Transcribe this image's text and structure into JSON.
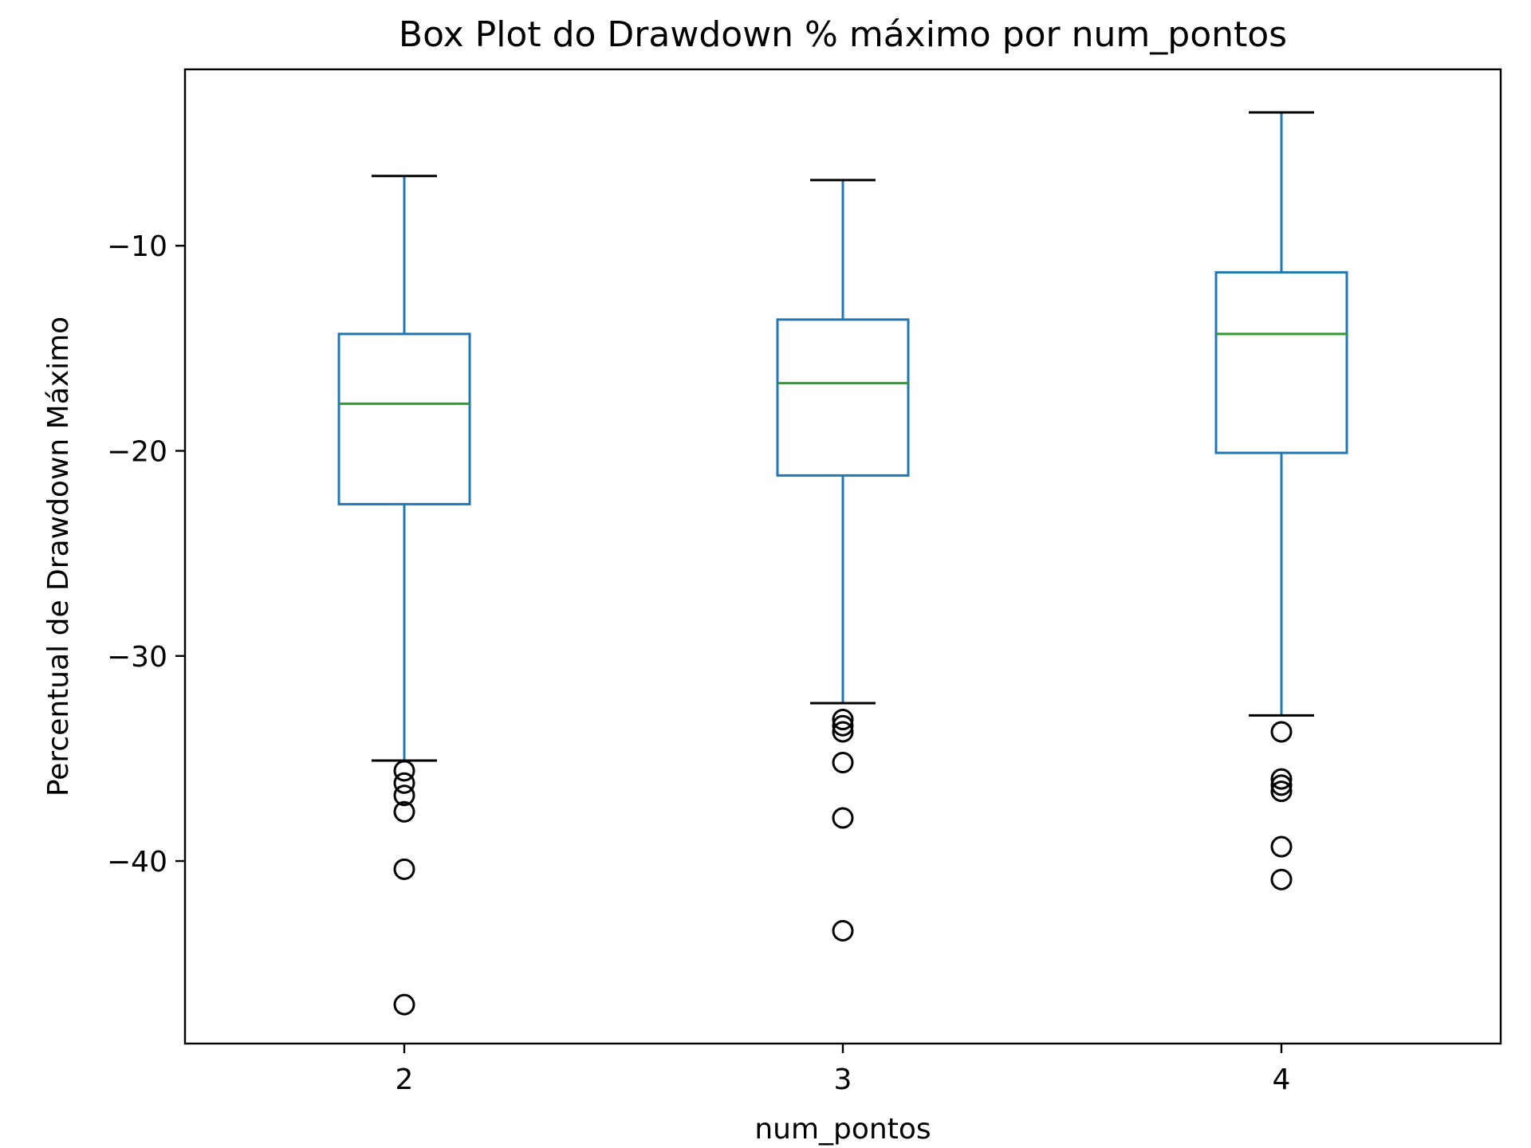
{
  "colors": {
    "box": "#1f77b4",
    "median": "#2ca02c",
    "whisker_cap": "#000000",
    "flier": "#000000",
    "axes": "#000000",
    "background": "#ffffff"
  },
  "chart_data": {
    "type": "box",
    "title": "Box Plot do Drawdown % máximo por num_pontos",
    "xlabel": "num_pontos",
    "ylabel": "Percentual de Drawdown Máximo",
    "ylim": [
      -48.9,
      -1.4
    ],
    "yticks": [
      -10,
      -20,
      -30,
      -40
    ],
    "ytick_labels": [
      "−10",
      "−20",
      "−30",
      "−40"
    ],
    "grid": false,
    "categories": [
      "2",
      "3",
      "4"
    ],
    "boxes": [
      {
        "category": "2",
        "whisker_high": -6.6,
        "q3": -14.3,
        "median": -17.7,
        "q1": -22.6,
        "whisker_low": -35.1,
        "fliers": [
          -35.6,
          -36.2,
          -36.8,
          -37.6,
          -40.4,
          -47.0
        ]
      },
      {
        "category": "3",
        "whisker_high": -6.8,
        "q3": -13.6,
        "median": -16.7,
        "q1": -21.2,
        "whisker_low": -32.3,
        "fliers": [
          -33.1,
          -33.4,
          -33.7,
          -35.2,
          -37.9,
          -43.4
        ]
      },
      {
        "category": "4",
        "whisker_high": -3.5,
        "q3": -11.3,
        "median": -14.3,
        "q1": -20.1,
        "whisker_low": -32.9,
        "fliers": [
          -33.7,
          -36.0,
          -36.3,
          -36.6,
          -39.3,
          -40.9
        ]
      }
    ]
  }
}
